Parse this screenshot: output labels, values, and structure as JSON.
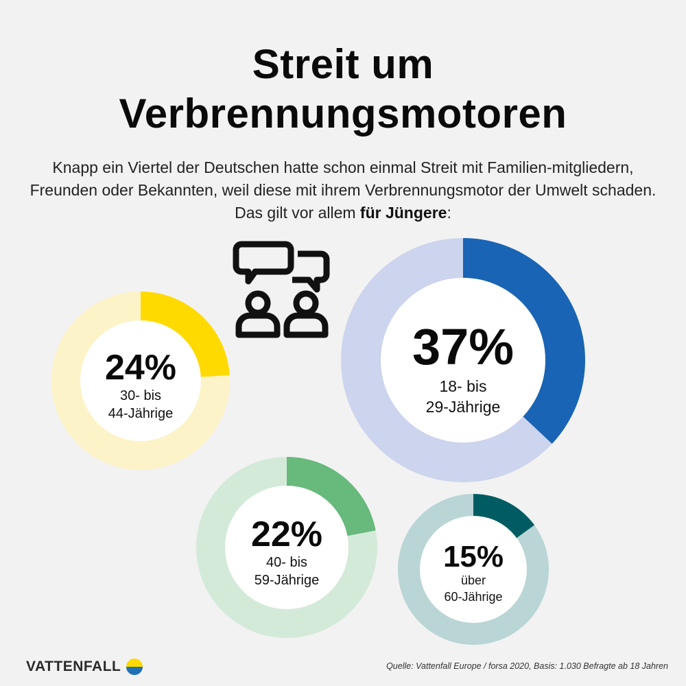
{
  "header": {
    "title_line1": "Streit um",
    "title_line2": "Verbrennungsmotoren",
    "intro_text": "Knapp ein Viertel der Deutschen hatte schon einmal Streit mit Familien-mitgliedern, Freunden oder Bekannten, weil diese mit ihrem Verbrennungsmotor der Umwelt schaden. Das gilt vor allem ",
    "intro_bold": "für Jüngere",
    "intro_end": ":"
  },
  "chart_data": {
    "type": "pie",
    "unit": "%",
    "series": [
      {
        "value_label": "24%",
        "value": 24,
        "line1": "30- bis",
        "line2": "44-Jährige",
        "color": "#ffda00",
        "track": "#fdf3c8"
      },
      {
        "value_label": "37%",
        "value": 37,
        "line1": "18- bis",
        "line2": "29-Jährige",
        "color": "#1964b4",
        "track": "#ccd4ee"
      },
      {
        "value_label": "22%",
        "value": 22,
        "line1": "40- bis",
        "line2": "59-Jährige",
        "color": "#67b97c",
        "track": "#d4ead9"
      },
      {
        "value_label": "15%",
        "value": 15,
        "line1": "über",
        "line2": "60-Jährige",
        "color": "#005c63",
        "track": "#bad5d5"
      }
    ]
  },
  "footer": {
    "brand": "VATTENFALL",
    "source": "Quelle: Vattenfall Europe / forsa 2020, Basis: 1.030 Befragte ab 18 Jahren",
    "brand_colors": {
      "yellow": "#ffda00",
      "blue": "#2071b5"
    }
  },
  "icons": {
    "discussion": "two-people-speech-bubbles-icon",
    "logo": "vattenfall-logo-icon"
  }
}
